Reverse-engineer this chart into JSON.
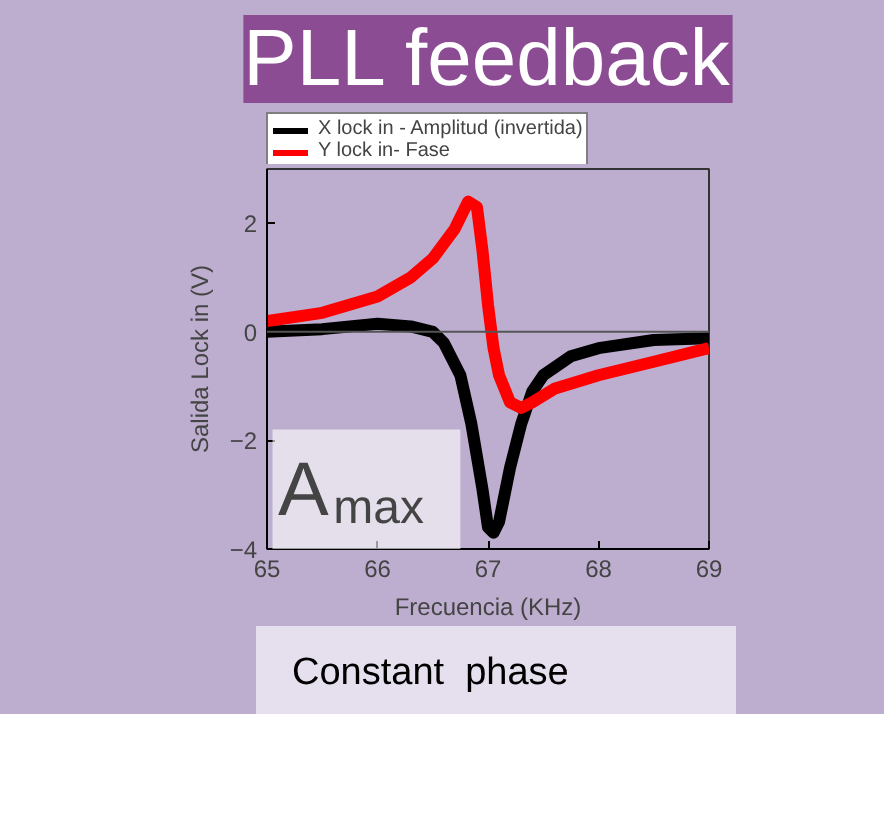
{
  "chart_data": {
    "type": "line",
    "title": "PLL feedback",
    "xlabel": "Frecuencia (KHz)",
    "ylabel": "Salida Lock in (V)",
    "x": [
      65,
      65.5,
      66,
      66.3,
      66.5,
      66.6,
      66.75,
      66.85,
      66.95,
      67.0,
      67.05,
      67.1,
      67.2,
      67.3,
      67.4,
      67.5,
      67.75,
      68,
      68.5,
      69
    ],
    "series": [
      {
        "name": "X lock in - Amplitud (invertida)",
        "color": "#000000",
        "values": [
          0,
          0.05,
          0.15,
          0.1,
          0,
          -0.2,
          -0.8,
          -1.7,
          -2.9,
          -3.6,
          -3.7,
          -3.5,
          -2.5,
          -1.7,
          -1.1,
          -0.8,
          -0.45,
          -0.3,
          -0.15,
          -0.12
        ]
      },
      {
        "name": "Y lock in- Fase",
        "color": "#ff0000",
        "x": [
          65,
          65.5,
          66,
          66.3,
          66.5,
          66.7,
          66.82,
          66.9,
          66.95,
          67.0,
          67.05,
          67.1,
          67.2,
          67.3,
          67.4,
          67.6,
          68,
          68.5,
          69
        ],
        "values": [
          0.2,
          0.35,
          0.65,
          1.0,
          1.35,
          1.9,
          2.4,
          2.3,
          1.5,
          0.5,
          -0.3,
          -0.8,
          -1.3,
          -1.4,
          -1.3,
          -1.05,
          -0.8,
          -0.55,
          -0.3
        ]
      }
    ],
    "xlim": [
      65,
      69
    ],
    "ylim": [
      -4,
      3
    ],
    "xticks": [
      65,
      66,
      67,
      68,
      69
    ],
    "yticks": [
      -4,
      -2,
      0,
      2
    ],
    "ref_lines": [
      {
        "axis": "y",
        "value": 0,
        "color": "#555555"
      }
    ],
    "legend": "top left",
    "grid": false,
    "annotations": [
      "A$_{max}$",
      "Constant  phase"
    ]
  }
}
